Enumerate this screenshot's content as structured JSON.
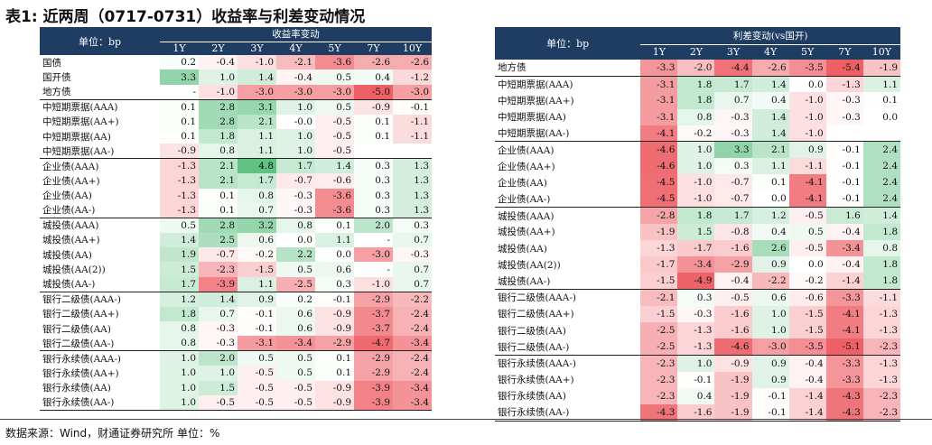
{
  "title": "表1: 近两周（0717-0731）收益率与利差变动情况",
  "source_note": "数据来源：Wind，财通证券研究所   单位：%",
  "left_table": {
    "unit_label": "单位：bp",
    "group_label": "收益率变动",
    "columns": [
      "1Y",
      "2Y",
      "3Y",
      "4Y",
      "5Y",
      "7Y",
      "10Y"
    ],
    "groups": [
      {
        "rows": [
          {
            "label": "国债",
            "values": [
              "0.2",
              "-0.4",
              "-1.0",
              "-2.1",
              "-3.6",
              "-2.6",
              "-2.6"
            ]
          },
          {
            "label": "国开债",
            "values": [
              "3.3",
              "1.0",
              "1.4",
              "-0.4",
              "0.5",
              "0.4",
              "-1.2"
            ]
          },
          {
            "label": "地方债",
            "values": [
              "-",
              "-1.0",
              "-3.0",
              "-3.0",
              "-3.0",
              "-5.0",
              "-3.0"
            ]
          }
        ]
      },
      {
        "rows": [
          {
            "label": "中短期票据(AAA)",
            "values": [
              "0.1",
              "2.8",
              "3.1",
              "1.0",
              "0.5",
              "-0.9",
              "-0.1"
            ]
          },
          {
            "label": "中短期票据(AA+)",
            "values": [
              "0.1",
              "2.8",
              "2.1",
              "-0.0",
              "-0.5",
              "0.1",
              "-1.1"
            ]
          },
          {
            "label": "中短期票据(AA)",
            "values": [
              "0.1",
              "1.8",
              "1.1",
              "1.0",
              "-0.5",
              "0.1",
              "-1.1"
            ]
          },
          {
            "label": "中短期票据(AA-)",
            "values": [
              "-0.9",
              "0.8",
              "1.1",
              "1.0",
              "-0.5",
              "",
              ""
            ]
          }
        ]
      },
      {
        "rows": [
          {
            "label": "企业债(AAA)",
            "values": [
              "-1.3",
              "2.1",
              "4.8",
              "1.7",
              "1.4",
              "0.3",
              "1.3"
            ]
          },
          {
            "label": "企业债(AA+)",
            "values": [
              "-1.3",
              "2.1",
              "1.7",
              "-0.7",
              "-0.6",
              "0.3",
              "1.3"
            ]
          },
          {
            "label": "企业债(AA)",
            "values": [
              "-1.3",
              "0.1",
              "0.8",
              "-0.3",
              "-3.6",
              "0.3",
              "1.3"
            ]
          },
          {
            "label": "企业债(AA-)",
            "values": [
              "-1.3",
              "0.1",
              "0.7",
              "-0.3",
              "-3.6",
              "0.3",
              "1.3"
            ]
          }
        ]
      },
      {
        "rows": [
          {
            "label": "城投债(AAA)",
            "values": [
              "0.5",
              "2.8",
              "3.2",
              "0.8",
              "0.1",
              "2.0",
              "0.3"
            ]
          },
          {
            "label": "城投债(AA+)",
            "values": [
              "1.4",
              "2.5",
              "0.6",
              "0.0",
              "1.1",
              "-",
              "0.7"
            ]
          },
          {
            "label": "城投债(AA)",
            "values": [
              "1.9",
              "-0.7",
              "-0.2",
              "2.2",
              "0.0",
              "-3.0",
              "-0.3"
            ]
          },
          {
            "label": "城投债(AA(2))",
            "values": [
              "1.5",
              "-2.3",
              "-1.5",
              "0.5",
              "0.6",
              "-",
              "0.7"
            ]
          },
          {
            "label": "城投债(AA-)",
            "values": [
              "1.7",
              "-3.9",
              "1.1",
              "-2.5",
              "0.3",
              "-1.0",
              "0.7"
            ]
          }
        ]
      },
      {
        "rows": [
          {
            "label": "银行二级债(AAA-)",
            "values": [
              "1.2",
              "1.4",
              "0.9",
              "0.2",
              "-0.1",
              "-2.9",
              "-2.2"
            ]
          },
          {
            "label": "银行二级债(AA+)",
            "values": [
              "1.8",
              "0.7",
              "-0.1",
              "0.6",
              "-0.9",
              "-3.7",
              "-2.4"
            ]
          },
          {
            "label": "银行二级债(AA)",
            "values": [
              "0.8",
              "-0.3",
              "-0.1",
              "0.6",
              "-0.9",
              "-3.7",
              "-2.4"
            ]
          },
          {
            "label": "银行二级债(AA-)",
            "values": [
              "0.8",
              "-0.3",
              "-3.1",
              "-3.4",
              "-2.9",
              "-4.7",
              "-3.4"
            ]
          }
        ]
      },
      {
        "rows": [
          {
            "label": "银行永续债(AAA-)",
            "values": [
              "1.0",
              "2.0",
              "0.5",
              "0.5",
              "0.1",
              "-2.9",
              "-2.4"
            ]
          },
          {
            "label": "银行永续债(AA+)",
            "values": [
              "1.0",
              "1.0",
              "-0.5",
              "0.5",
              "0.1",
              "-2.9",
              "-2.4"
            ]
          },
          {
            "label": "银行永续债(AA)",
            "values": [
              "1.0",
              "1.5",
              "-0.5",
              "-0.5",
              "-0.9",
              "-3.9",
              "-3.4"
            ]
          },
          {
            "label": "银行永续债(AA-)",
            "values": [
              "1.0",
              "-0.5",
              "-0.5",
              "-0.5",
              "-0.9",
              "-3.9",
              "-3.4"
            ]
          }
        ]
      }
    ]
  },
  "right_table": {
    "unit_label": "单位：bp",
    "group_label": "利差变动(vs国开)",
    "columns": [
      "1Y",
      "2Y",
      "3Y",
      "4Y",
      "5Y",
      "7Y",
      "10Y"
    ],
    "groups": [
      {
        "rows": [
          {
            "label": "地方债",
            "values": [
              "-3.3",
              "-2.0",
              "-4.4",
              "-2.6",
              "-3.5",
              "-5.4",
              "-1.9"
            ]
          }
        ]
      },
      {
        "rows": [
          {
            "label": "中短期票据(AAA)",
            "values": [
              "-3.1",
              "1.8",
              "1.7",
              "1.4",
              "0.0",
              "-1.3",
              "1.1"
            ]
          },
          {
            "label": "中短期票据(AA+)",
            "values": [
              "-3.1",
              "1.8",
              "0.7",
              "0.4",
              "-1.0",
              "-0.3",
              "0.1"
            ]
          },
          {
            "label": "中短期票据(AA)",
            "values": [
              "-3.1",
              "0.8",
              "-0.3",
              "1.4",
              "-1.0",
              "-0.3",
              "0.0"
            ]
          },
          {
            "label": "中短期票据(AA-)",
            "values": [
              "-4.1",
              "-0.2",
              "-0.3",
              "1.4",
              "-1.0",
              "",
              ""
            ]
          }
        ]
      },
      {
        "rows": [
          {
            "label": "企业债(AAA)",
            "values": [
              "-4.6",
              "1.0",
              "3.3",
              "2.1",
              "0.9",
              "-0.1",
              "2.4"
            ]
          },
          {
            "label": "企业债(AA+)",
            "values": [
              "-4.6",
              "1.0",
              "0.3",
              "1.1",
              "-1.1",
              "-0.1",
              "2.4"
            ]
          },
          {
            "label": "企业债(AA)",
            "values": [
              "-4.5",
              "-1.0",
              "-0.7",
              "0.1",
              "-4.1",
              "-0.1",
              "2.4"
            ]
          },
          {
            "label": "企业债(AA-)",
            "values": [
              "-4.5",
              "-1.0",
              "-0.7",
              "0.0",
              "-4.1",
              "-0.1",
              "2.4"
            ]
          }
        ]
      },
      {
        "rows": [
          {
            "label": "城投债(AAA)",
            "values": [
              "-2.8",
              "1.8",
              "1.7",
              "1.2",
              "-0.5",
              "1.6",
              "1.4"
            ]
          },
          {
            "label": "城投债(AA+)",
            "values": [
              "-1.9",
              "1.5",
              "-0.8",
              "0.4",
              "0.5",
              "-0.4",
              "1.8"
            ]
          },
          {
            "label": "城投债(AA)",
            "values": [
              "-1.3",
              "-1.7",
              "-1.6",
              "2.6",
              "-0.5",
              "-3.4",
              "0.8"
            ]
          },
          {
            "label": "城投债(AA(2))",
            "values": [
              "-1.7",
              "-3.4",
              "-2.9",
              "0.9",
              "0.0",
              "-0.4",
              "1.8"
            ]
          },
          {
            "label": "城投债(AA-)",
            "values": [
              "-1.5",
              "-4.9",
              "-0.4",
              "-2.2",
              "-0.2",
              "-1.4",
              "1.8"
            ]
          }
        ]
      },
      {
        "rows": [
          {
            "label": "银行二级债(AAA-)",
            "values": [
              "-2.1",
              "0.3",
              "-0.5",
              "0.6",
              "-0.6",
              "-3.3",
              "-1.1"
            ]
          },
          {
            "label": "银行二级债(AA+)",
            "values": [
              "-1.5",
              "-0.3",
              "-1.6",
              "1.0",
              "-1.5",
              "-4.1",
              "-1.3"
            ]
          },
          {
            "label": "银行二级债(AA)",
            "values": [
              "-2.5",
              "-1.3",
              "-1.6",
              "1.0",
              "-1.5",
              "-4.1",
              "-1.3"
            ]
          },
          {
            "label": "银行二级债(AA-)",
            "values": [
              "-2.5",
              "-1.3",
              "-4.6",
              "-3.0",
              "-3.5",
              "-5.1",
              "-2.3"
            ]
          }
        ]
      },
      {
        "rows": [
          {
            "label": "银行永续债(AAA-)",
            "values": [
              "-2.3",
              "1.0",
              "-0.9",
              "0.9",
              "-0.4",
              "-3.3",
              "-1.3"
            ]
          },
          {
            "label": "银行永续债(AA+)",
            "values": [
              "-2.3",
              "-0.1",
              "-1.9",
              "0.9",
              "-0.4",
              "-3.3",
              "-1.3"
            ]
          },
          {
            "label": "银行永续债(AA)",
            "values": [
              "-2.3",
              "0.4",
              "-1.9",
              "-0.1",
              "-1.4",
              "-4.3",
              "-2.3"
            ]
          },
          {
            "label": "银行永续债(AA-)",
            "values": [
              "-4.3",
              "-1.6",
              "-1.9",
              "-0.1",
              "-1.4",
              "-4.3",
              "-2.3"
            ]
          }
        ]
      }
    ]
  }
}
